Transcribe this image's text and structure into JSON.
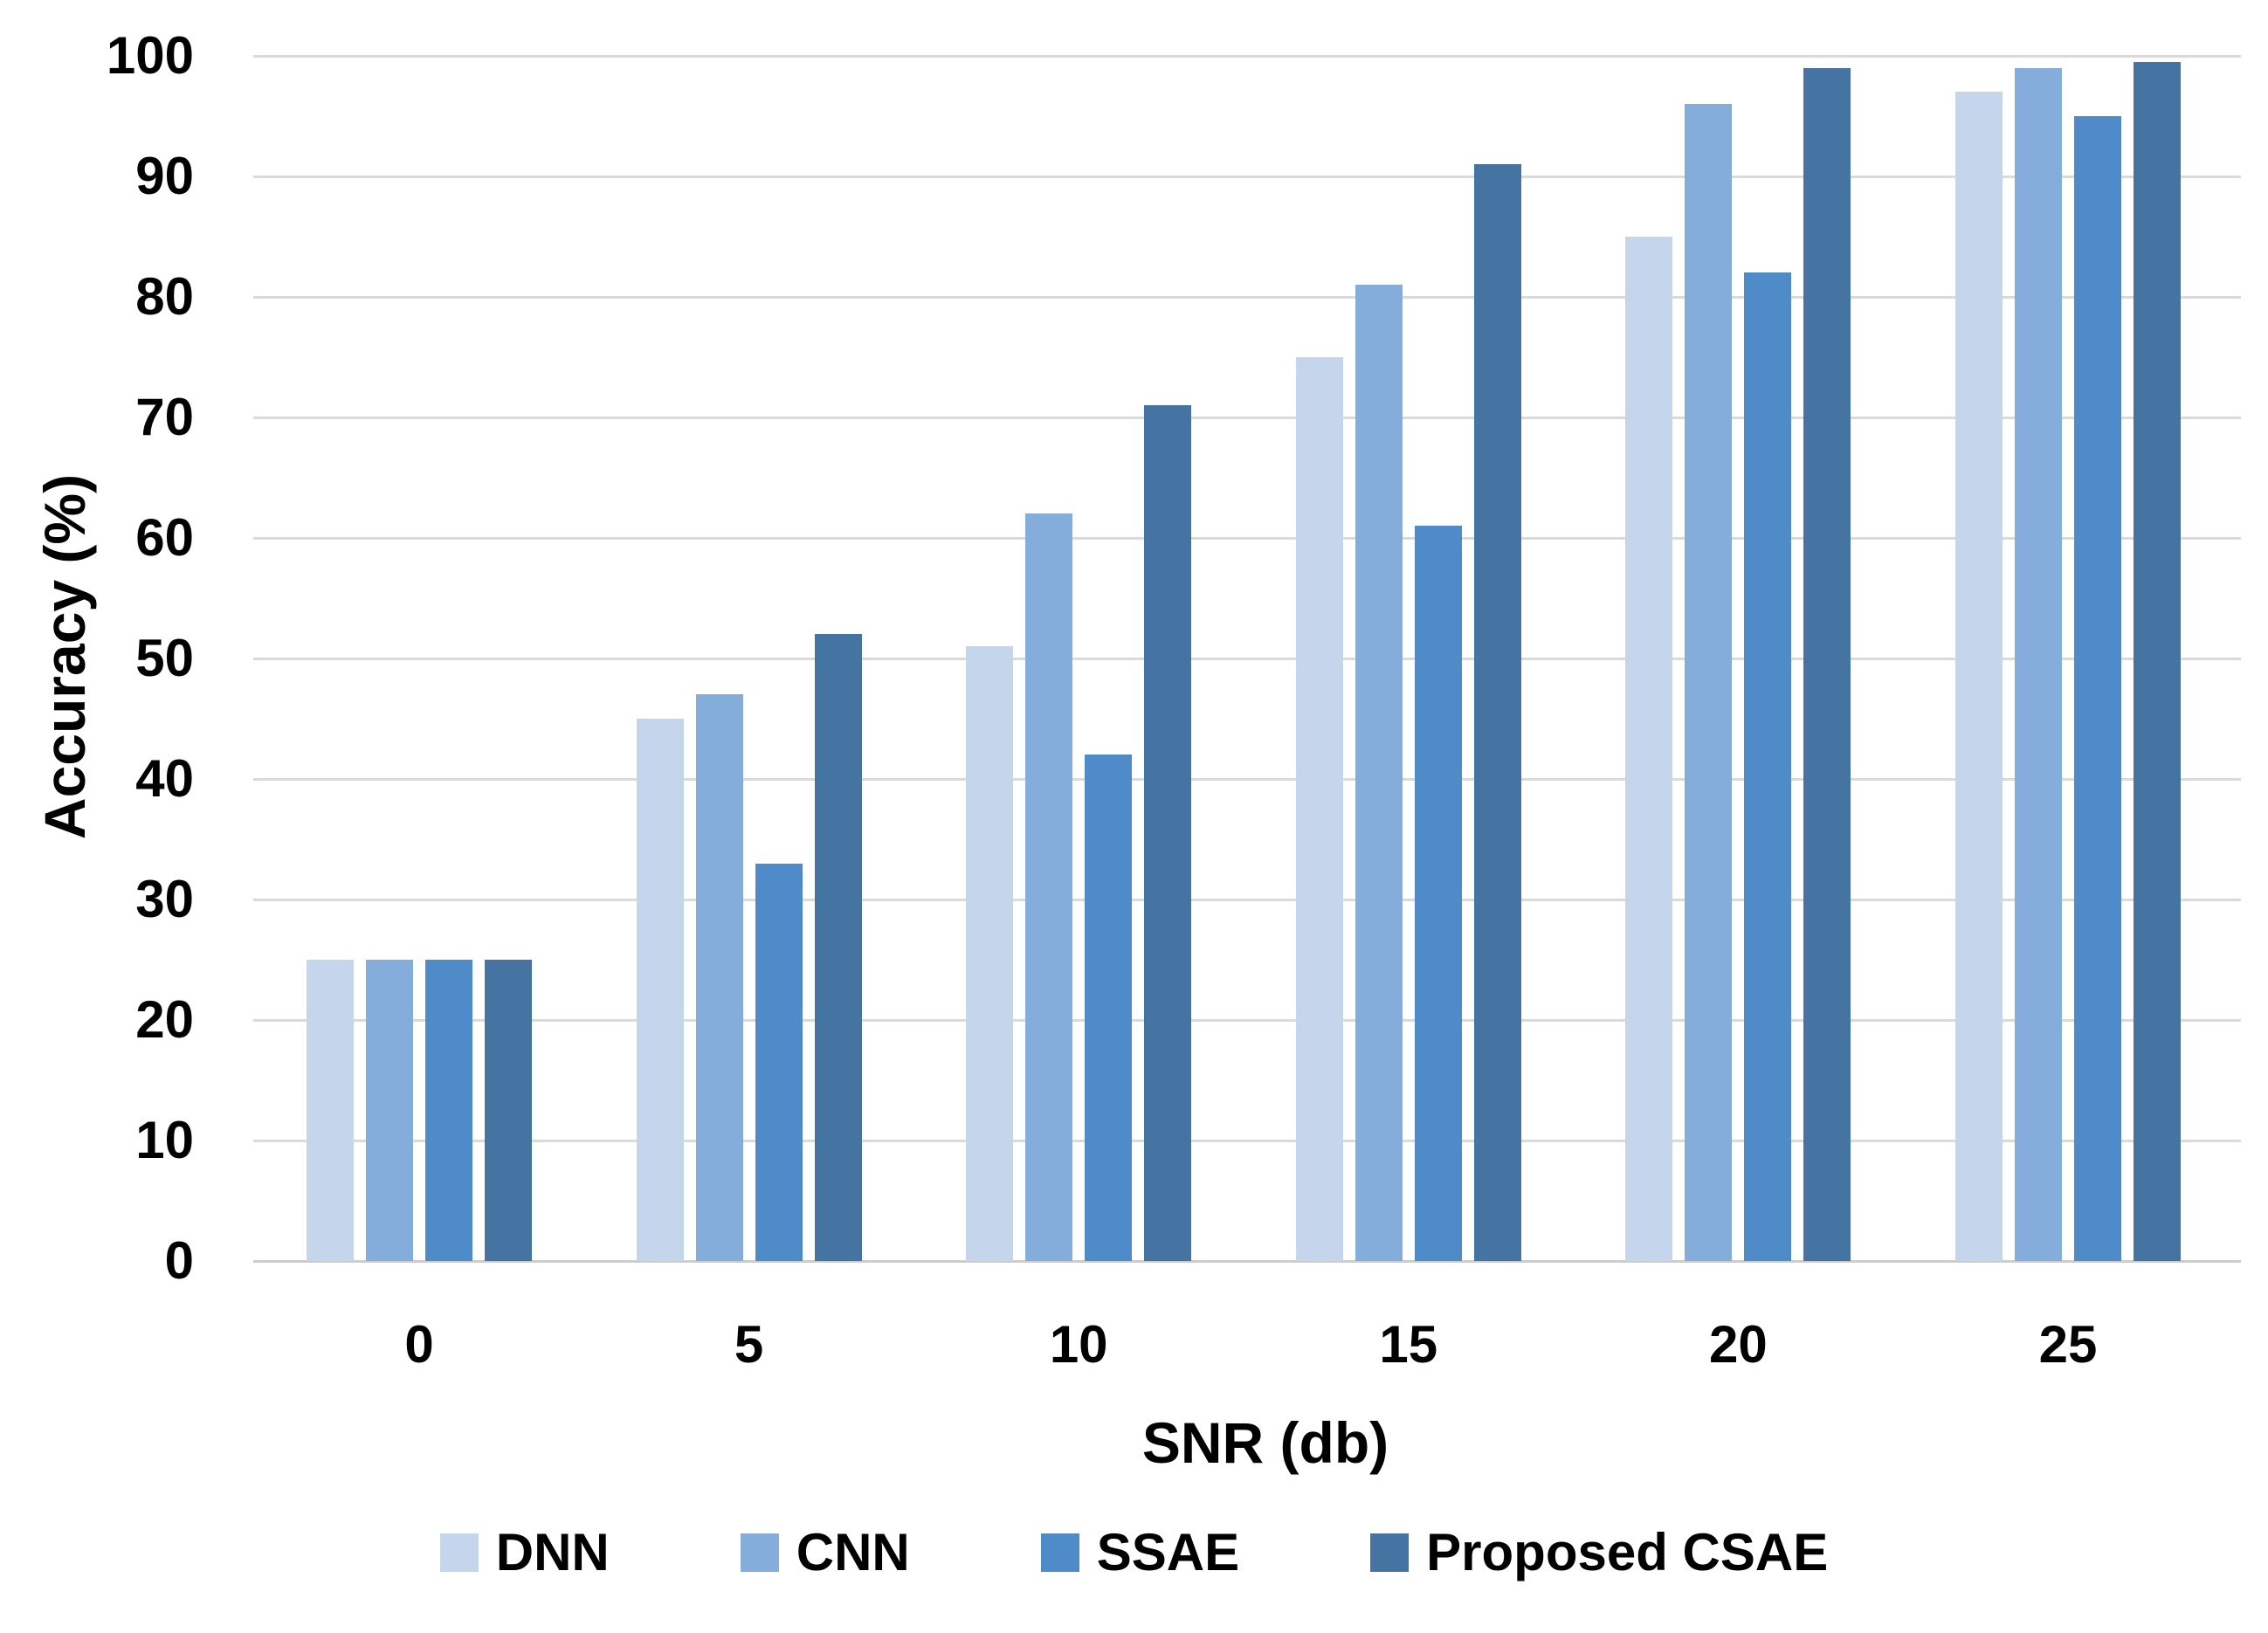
{
  "chart_data": {
    "type": "bar",
    "title": "",
    "xlabel": "SNR (db)",
    "ylabel": "Accuracy (%)",
    "categories": [
      "0",
      "5",
      "10",
      "15",
      "20",
      "25"
    ],
    "series": [
      {
        "name": "DNN",
        "color": "#C5D5EC",
        "values": [
          25,
          45,
          51,
          75,
          85,
          97
        ]
      },
      {
        "name": "CNN",
        "color": "#85ADDB",
        "values": [
          25,
          47,
          62,
          81,
          96,
          99
        ]
      },
      {
        "name": "SSAE",
        "color": "#4E8BC8",
        "values": [
          25,
          33,
          42,
          61,
          82,
          95
        ]
      },
      {
        "name": "Proposed CSAE",
        "color": "#4573A2",
        "values": [
          25,
          52,
          71,
          91,
          99,
          99.5
        ]
      }
    ],
    "ylim": [
      0,
      100
    ],
    "ytick_step": 10,
    "ytick_labels": [
      "0",
      "10",
      "20",
      "30",
      "40",
      "50",
      "60",
      "70",
      "80",
      "90",
      "100"
    ],
    "grid": true,
    "gridline_color": "#DADADA",
    "baseline_color": "#CCCCCC",
    "legend_position": "bottom",
    "background": "#FFFFFF",
    "text_color": "#000000"
  }
}
